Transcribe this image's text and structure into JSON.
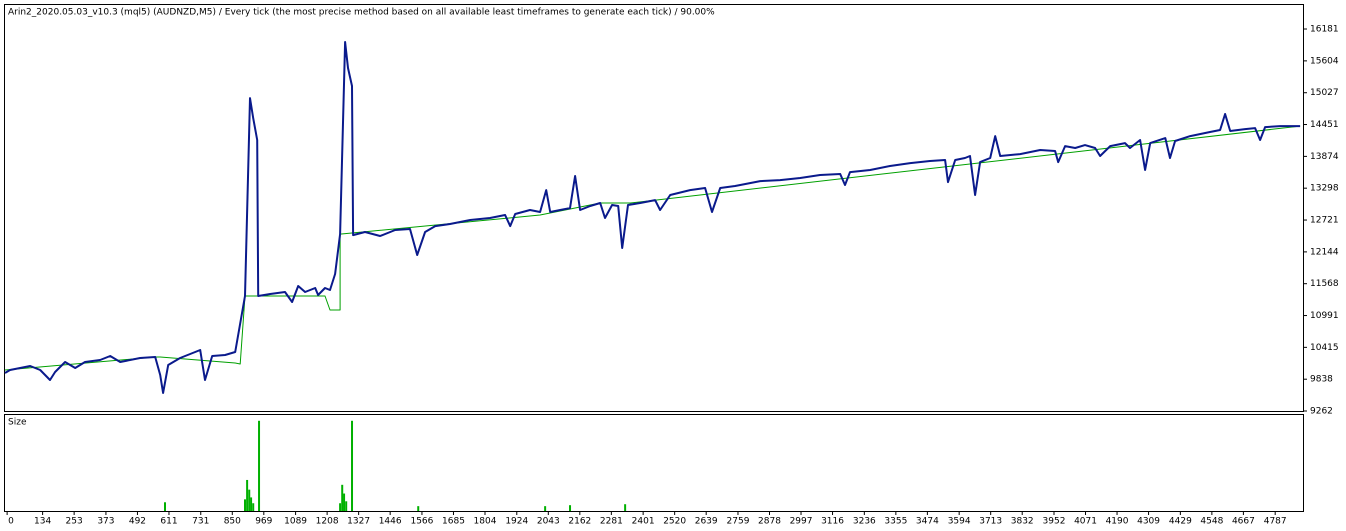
{
  "chart_data": [
    {
      "type": "line",
      "title": "Arin2_2020.05.03_v10.3 (mql5) (AUDNZD,M5) / Every tick (the most precise method based on all available least timeframes to generate each tick) / 90.00%",
      "xlim": [
        -8,
        4892
      ],
      "ylim": [
        9262,
        16616
      ],
      "yticks": [
        9262,
        9838,
        10415,
        10991,
        11568,
        12144,
        12721,
        13298,
        13874,
        14451,
        15027,
        15604,
        16181
      ],
      "series": [
        {
          "color": "#00a000",
          "x": [
            -8,
            559,
            578,
            861,
            880,
            898,
            1200,
            1219,
            1257,
            1257,
            2012,
            2239,
            2352,
            4881
          ],
          "values": [
            10005,
            10240,
            10240,
            10131,
            10113,
            11345,
            11345,
            11091,
            11091,
            12467,
            12812,
            13029,
            13029,
            14423
          ]
        },
        {
          "color": "#0a1a8c",
          "x": [
            -8,
            11,
            49,
            87,
            125,
            162,
            181,
            219,
            257,
            294,
            351,
            389,
            427,
            502,
            559,
            578,
            589,
            608,
            653,
            710,
            729,
            747,
            774,
            823,
            861,
            898,
            917,
            929,
            944,
            948,
            993,
            1049,
            1076,
            1099,
            1125,
            1163,
            1174,
            1200,
            1219,
            1238,
            1257,
            1276,
            1287,
            1302,
            1306,
            1351,
            1408,
            1465,
            1521,
            1548,
            1578,
            1616,
            1672,
            1748,
            1823,
            1880,
            1899,
            1918,
            1974,
            2012,
            2035,
            2050,
            2088,
            2125,
            2144,
            2163,
            2201,
            2239,
            2257,
            2284,
            2307,
            2322,
            2344,
            2390,
            2446,
            2465,
            2503,
            2578,
            2635,
            2661,
            2692,
            2748,
            2843,
            2918,
            2994,
            3069,
            3145,
            3163,
            3182,
            3258,
            3333,
            3409,
            3484,
            3541,
            3552,
            3579,
            3616,
            3635,
            3654,
            3673,
            3711,
            3730,
            3749,
            3824,
            3900,
            3956,
            3968,
            3994,
            4032,
            4069,
            4107,
            4126,
            4164,
            4220,
            4239,
            4277,
            4296,
            4315,
            4372,
            4390,
            4409,
            4466,
            4541,
            4579,
            4598,
            4617,
            4673,
            4711,
            4730,
            4749,
            4806,
            4881
          ],
          "values": [
            9950,
            10005,
            10041,
            10077,
            10005,
            9823,
            9968,
            10149,
            10041,
            10149,
            10186,
            10258,
            10149,
            10222,
            10240,
            9914,
            9588,
            10095,
            10222,
            10330,
            10367,
            9823,
            10258,
            10276,
            10330,
            11345,
            14930,
            14568,
            14170,
            11345,
            11381,
            11417,
            11236,
            11526,
            11417,
            11490,
            11363,
            11490,
            11453,
            11743,
            12467,
            15945,
            15474,
            15148,
            12449,
            12504,
            12431,
            12540,
            12558,
            12087,
            12504,
            12612,
            12649,
            12721,
            12757,
            12812,
            12612,
            12830,
            12902,
            12866,
            13264,
            12866,
            12902,
            12938,
            13518,
            12902,
            12975,
            13029,
            12757,
            12993,
            12975,
            12214,
            12993,
            13029,
            13083,
            12902,
            13174,
            13264,
            13301,
            12866,
            13301,
            13337,
            13427,
            13445,
            13482,
            13536,
            13554,
            13355,
            13590,
            13627,
            13699,
            13753,
            13790,
            13808,
            13409,
            13808,
            13844,
            13880,
            13174,
            13771,
            13844,
            14242,
            13880,
            13916,
            13989,
            13971,
            13771,
            14061,
            14025,
            14079,
            14025,
            13880,
            14061,
            14115,
            14025,
            14170,
            13627,
            14115,
            14206,
            13844,
            14152,
            14242,
            14315,
            14351,
            14641,
            14333,
            14369,
            14387,
            14170,
            14405,
            14423,
            14423
          ]
        }
      ]
    },
    {
      "type": "bar",
      "title": "Size",
      "color": "#00b000",
      "xlim": [
        -8,
        4892
      ],
      "ylim": [
        0,
        100
      ],
      "xticks": [
        0,
        134,
        253,
        373,
        492,
        611,
        731,
        850,
        969,
        1089,
        1208,
        1327,
        1446,
        1566,
        1685,
        1804,
        1924,
        2043,
        2162,
        2281,
        2401,
        2520,
        2639,
        2759,
        2878,
        2997,
        3116,
        3236,
        3355,
        3474,
        3594,
        3713,
        3832,
        3952,
        4071,
        4190,
        4309,
        4429,
        4548,
        4667,
        4787
      ],
      "x": [
        596,
        898,
        906,
        914,
        921,
        929,
        951,
        1257,
        1265,
        1272,
        1280,
        1302,
        1552,
        2031,
        2125,
        2333
      ],
      "values": [
        9,
        12,
        32,
        22,
        14,
        8,
        93,
        8,
        27,
        18,
        10,
        93,
        5,
        5,
        6,
        7
      ]
    }
  ]
}
